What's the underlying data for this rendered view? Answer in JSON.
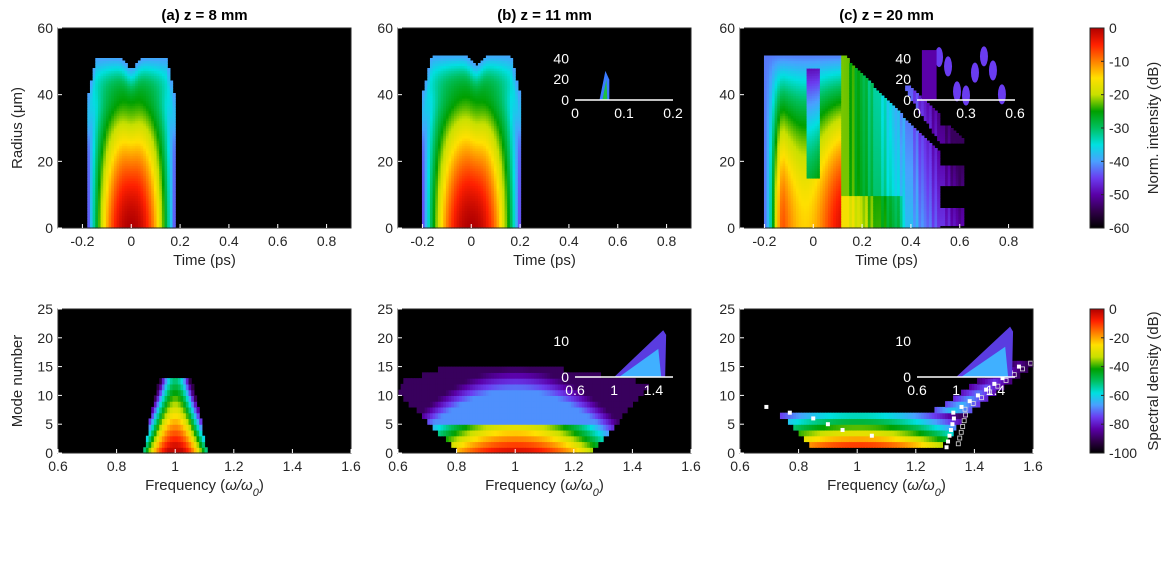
{
  "chart_data": [
    {
      "type": "heatmap",
      "panel": "top-left",
      "title": "(a) z = 8 mm",
      "xlabel": "Time (ps)",
      "ylabel": "Radius (μm)",
      "xlim": [
        -0.3,
        0.9
      ],
      "ylim": [
        0,
        60
      ],
      "xticks": [
        -0.2,
        0,
        0.2,
        0.4,
        0.6,
        0.8
      ],
      "xtick_labels": [
        "-0.2",
        "0",
        "0.2",
        "0.4",
        "0.6",
        "0.8"
      ],
      "yticks": [
        0,
        20,
        40,
        60
      ],
      "ytick_labels": [
        "0",
        "20",
        "40",
        "60"
      ],
      "field": {
        "kind": "pulse",
        "t_left": -0.17,
        "t_right": 0.17,
        "r_max": 51,
        "peaks": [
          -0.05,
          0.05
        ],
        "dip_center": 0.0
      }
    },
    {
      "type": "heatmap",
      "panel": "top-middle",
      "title": "(b) z = 11 mm",
      "xlabel": "Time (ps)",
      "xlim": [
        -0.3,
        0.9
      ],
      "ylim": [
        0,
        60
      ],
      "xticks": [
        -0.2,
        0,
        0.2,
        0.4,
        0.6,
        0.8
      ],
      "xtick_labels": [
        "-0.2",
        "0",
        "0.2",
        "0.4",
        "0.6",
        "0.8"
      ],
      "yticks": [
        0,
        20,
        40,
        60
      ],
      "ytick_labels": [
        "0",
        "20",
        "40",
        "60"
      ],
      "field": {
        "kind": "pulse",
        "t_left": -0.19,
        "t_right": 0.19,
        "r_max": 52,
        "peaks": [
          -0.06,
          0.06
        ],
        "dip_center": 0.02
      },
      "inset": {
        "xlim": [
          0,
          0.2
        ],
        "ylim": [
          0,
          50
        ],
        "xticks": [
          0,
          0.1,
          0.2
        ],
        "xtick_labels": [
          "0",
          "0.1",
          "0.2"
        ],
        "yticks": [
          0,
          20,
          40
        ],
        "ytick_labels": [
          "0",
          "20",
          "40"
        ],
        "shape": {
          "kind": "spike",
          "t0": 0.05,
          "t1": 0.07,
          "r_top": 28
        }
      }
    },
    {
      "type": "heatmap",
      "panel": "top-right",
      "title": "(c) z = 20 mm",
      "xlabel": "Time (ps)",
      "xlim": [
        -0.3,
        0.9
      ],
      "ylim": [
        0,
        60
      ],
      "xticks": [
        -0.2,
        0,
        0.2,
        0.4,
        0.6,
        0.8
      ],
      "xtick_labels": [
        "-0.2",
        "0",
        "0.2",
        "0.4",
        "0.6",
        "0.8"
      ],
      "yticks": [
        0,
        20,
        40,
        60
      ],
      "ytick_labels": [
        "0",
        "20",
        "40",
        "60"
      ],
      "field": {
        "kind": "wide",
        "t_left": -0.2,
        "t_core": 0.12,
        "t_right": 0.45,
        "r_max": 52
      },
      "inset": {
        "xlim": [
          0,
          0.6
        ],
        "ylim": [
          0,
          50
        ],
        "xticks": [
          0,
          0.3,
          0.6
        ],
        "xtick_labels": [
          "0",
          "0.3",
          "0.6"
        ],
        "yticks": [
          0,
          20,
          40
        ],
        "ytick_labels": [
          "0",
          "20",
          "40"
        ],
        "shape": {
          "kind": "blobs",
          "t0": 0.0,
          "t1": 0.6
        }
      }
    },
    {
      "type": "heatmap",
      "panel": "bottom-left",
      "xlabel": "Frequency (ω/ω0)",
      "ylabel": "Mode number",
      "xlim": [
        0.6,
        1.6
      ],
      "ylim": [
        0,
        25
      ],
      "xticks": [
        0.6,
        0.8,
        1,
        1.2,
        1.4,
        1.6
      ],
      "xtick_labels": [
        "0.6",
        "0.8",
        "1",
        "1.2",
        "1.4",
        "1.6"
      ],
      "yticks": [
        0,
        5,
        10,
        15,
        20,
        25
      ],
      "ytick_labels": [
        "0",
        "5",
        "10",
        "15",
        "20",
        "25"
      ],
      "field": {
        "kind": "spec",
        "f_center": 1.0,
        "f_width0": 0.11,
        "m_max": 13
      }
    },
    {
      "type": "heatmap",
      "panel": "bottom-middle",
      "xlabel": "Frequency (ω/ω0)",
      "xlim": [
        0.6,
        1.6
      ],
      "ylim": [
        0,
        25
      ],
      "xticks": [
        0.6,
        0.8,
        1,
        1.2,
        1.4,
        1.6
      ],
      "xtick_labels": [
        "0.6",
        "0.8",
        "1",
        "1.2",
        "1.4",
        "1.6"
      ],
      "yticks": [
        0,
        5,
        10,
        15,
        20,
        25
      ],
      "ytick_labels": [
        "0",
        "5",
        "10",
        "15",
        "20",
        "25"
      ],
      "field": {
        "kind": "spec_wide",
        "f_left": 0.8,
        "f_right": 1.5,
        "m_max": 15
      },
      "inset": {
        "xlim": [
          0.6,
          1.6
        ],
        "ylim": [
          0,
          15
        ],
        "xticks": [
          0.6,
          1,
          1.4
        ],
        "xtick_labels": [
          "0.6",
          "1",
          "1.4"
        ],
        "yticks": [
          0,
          10
        ],
        "ytick_labels": [
          "0",
          "10"
        ],
        "shape": {
          "kind": "wedge",
          "f0": 1.0,
          "f1": 1.5,
          "m_top": 13
        }
      }
    },
    {
      "type": "heatmap",
      "panel": "bottom-right",
      "xlabel": "Frequency (ω/ω0)",
      "xlim": [
        0.6,
        1.6
      ],
      "ylim": [
        0,
        25
      ],
      "xticks": [
        0.6,
        0.8,
        1,
        1.2,
        1.4,
        1.6
      ],
      "xtick_labels": [
        "0.6",
        "0.8",
        "1",
        "1.2",
        "1.4",
        "1.6"
      ],
      "yticks": [
        0,
        5,
        10,
        15,
        20,
        25
      ],
      "ytick_labels": [
        "0",
        "5",
        "10",
        "15",
        "20",
        "25"
      ],
      "field": {
        "kind": "spec_cone",
        "f_left": 0.8,
        "f_right": 1.58,
        "m_max": 16
      },
      "inset": {
        "xlim": [
          0.6,
          1.6
        ],
        "ylim": [
          0,
          15
        ],
        "xticks": [
          0.6,
          1,
          1.4
        ],
        "xtick_labels": [
          "0.6",
          "1",
          "1.4"
        ],
        "yticks": [
          0,
          10
        ],
        "ytick_labels": [
          "0",
          "10"
        ],
        "shape": {
          "kind": "wedge",
          "f0": 1.0,
          "f1": 1.55,
          "m_top": 14
        }
      }
    }
  ],
  "colorbars": [
    {
      "label": "Norm. intensity (dB)",
      "range": [
        -60,
        0
      ],
      "ticks": [
        0,
        -10,
        -20,
        -30,
        -40,
        -50,
        -60
      ],
      "tick_labels": [
        "0",
        "-10",
        "-20",
        "-30",
        "-40",
        "-50",
        "-60"
      ]
    },
    {
      "label": "Spectral density (dB)",
      "range": [
        -100,
        0
      ],
      "ticks": [
        0,
        -20,
        -40,
        -60,
        -80,
        -100
      ],
      "tick_labels": [
        "0",
        "-20",
        "-40",
        "-60",
        "-80",
        "-100"
      ]
    }
  ],
  "colormap": [
    "#000000",
    "#30004a",
    "#5a00a8",
    "#6b3cf0",
    "#4aa0ff",
    "#00e0e0",
    "#00c060",
    "#00a000",
    "#c8e000",
    "#ffe000",
    "#ff8000",
    "#ff2000",
    "#b00000"
  ]
}
